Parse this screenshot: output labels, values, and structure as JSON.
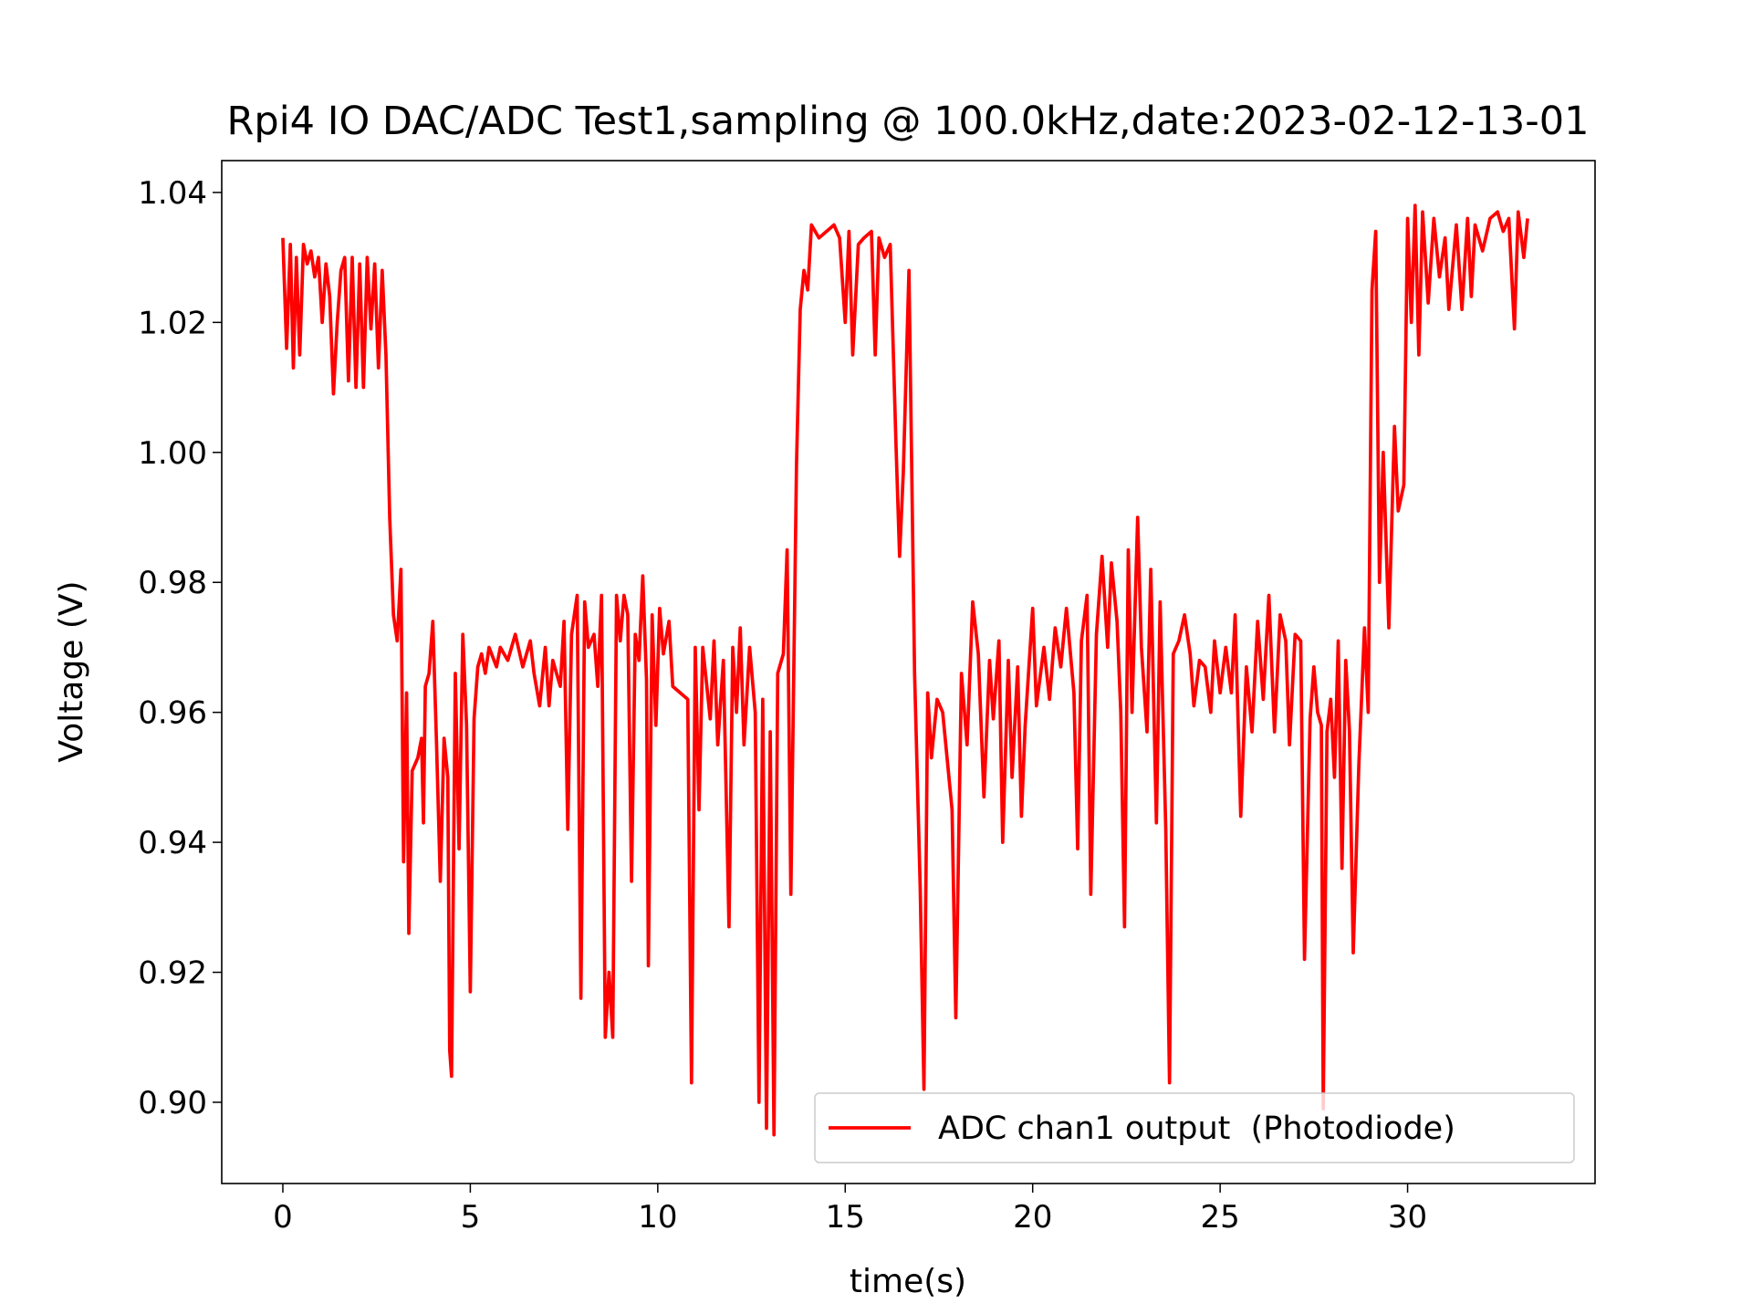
{
  "chart_data": {
    "type": "line",
    "title": "Rpi4 IO DAC/ADC Test1,sampling @ 100.0kHz,date:2023-02-12-13-01",
    "xlabel": "time(s)",
    "ylabel": "Voltage (V)",
    "xlim": [
      -1.63,
      35.0
    ],
    "ylim": [
      0.8875,
      1.0449
    ],
    "xticks": [
      0,
      5,
      10,
      15,
      20,
      25,
      30
    ],
    "yticks": [
      {
        "value": 0.9,
        "label": "0.90"
      },
      0.92,
      0.94,
      0.96,
      0.98,
      {
        "value": 1,
        "label": "1.00"
      },
      1.02,
      1.04
    ],
    "legend_position": "lower right",
    "x": [
      0,
      0.1,
      0.2,
      0.28,
      0.36,
      0.45,
      0.55,
      0.65,
      0.75,
      0.85,
      0.95,
      1.05,
      1.15,
      1.25,
      1.35,
      1.45,
      1.55,
      1.65,
      1.75,
      1.85,
      1.95,
      2.05,
      2.15,
      2.25,
      2.35,
      2.45,
      2.55,
      2.65,
      2.75,
      2.85,
      2.95,
      3.05,
      3.15,
      3.22,
      3.3,
      3.36,
      3.45,
      3.6,
      3.7,
      3.75,
      3.8,
      3.9,
      4.0,
      4.1,
      4.2,
      4.3,
      4.4,
      4.45,
      4.5,
      4.6,
      4.7,
      4.8,
      4.9,
      5.0,
      5.1,
      5.2,
      5.3,
      5.4,
      5.5,
      5.7,
      5.8,
      6.0,
      6.2,
      6.4,
      6.6,
      6.7,
      6.85,
      7.0,
      7.1,
      7.2,
      7.4,
      7.5,
      7.6,
      7.7,
      7.85,
      7.95,
      8.05,
      8.15,
      8.3,
      8.4,
      8.5,
      8.6,
      8.7,
      8.8,
      8.9,
      9.0,
      9.1,
      9.2,
      9.3,
      9.4,
      9.5,
      9.6,
      9.7,
      9.75,
      9.85,
      9.95,
      10.05,
      10.15,
      10.3,
      10.4,
      10.6,
      10.8,
      10.9,
      11.0,
      11.1,
      11.2,
      11.4,
      11.5,
      11.6,
      11.75,
      11.9,
      12.0,
      12.1,
      12.2,
      12.3,
      12.45,
      12.6,
      12.7,
      12.8,
      12.9,
      13.0,
      13.1,
      13.2,
      13.35,
      13.45,
      13.55,
      13.7,
      13.8,
      13.9,
      14.0,
      14.1,
      14.3,
      14.5,
      14.7,
      14.85,
      15.0,
      15.1,
      15.2,
      15.35,
      15.5,
      15.7,
      15.8,
      15.9,
      16.05,
      16.2,
      16.35,
      16.45,
      16.55,
      16.7,
      16.85,
      17.0,
      17.1,
      17.2,
      17.3,
      17.45,
      17.6,
      17.7,
      17.85,
      17.95,
      18.1,
      18.25,
      18.4,
      18.55,
      18.7,
      18.85,
      18.95,
      19.1,
      19.2,
      19.35,
      19.45,
      19.6,
      19.7,
      19.8,
      20.0,
      20.1,
      20.3,
      20.45,
      20.6,
      20.75,
      20.9,
      21.1,
      21.2,
      21.3,
      21.45,
      21.55,
      21.7,
      21.85,
      22.0,
      22.1,
      22.25,
      22.35,
      22.45,
      22.55,
      22.65,
      22.8,
      22.9,
      23.05,
      23.15,
      23.3,
      23.4,
      23.55,
      23.65,
      23.75,
      23.9,
      24.05,
      24.2,
      24.3,
      24.45,
      24.6,
      24.75,
      24.85,
      25.0,
      25.15,
      25.3,
      25.4,
      25.55,
      25.7,
      25.85,
      26.0,
      26.15,
      26.3,
      26.45,
      26.6,
      26.75,
      26.85,
      27.0,
      27.15,
      27.25,
      27.4,
      27.5,
      27.6,
      27.7,
      27.75,
      27.85,
      27.95,
      28.05,
      28.15,
      28.25,
      28.35,
      28.45,
      28.55,
      28.7,
      28.85,
      28.95,
      29.05,
      29.15,
      29.25,
      29.35,
      29.5,
      29.65,
      29.75,
      29.9,
      30.0,
      30.1,
      30.2,
      30.3,
      30.4,
      30.55,
      30.7,
      30.85,
      31.0,
      31.1,
      31.3,
      31.45,
      31.6,
      31.7,
      31.8,
      32.0,
      32.2,
      32.4,
      32.55,
      32.7,
      32.85,
      32.95,
      33.1,
      33.2
    ],
    "series": [
      {
        "name": "ADC chan1 output  (Photodiode)",
        "color": "#ff0000",
        "values": [
          1.033,
          1.016,
          1.032,
          1.013,
          1.03,
          1.015,
          1.032,
          1.029,
          1.031,
          1.027,
          1.03,
          1.02,
          1.029,
          1.024,
          1.009,
          1.02,
          1.028,
          1.03,
          1.011,
          1.03,
          1.01,
          1.029,
          1.01,
          1.03,
          1.019,
          1.029,
          1.013,
          1.028,
          1.015,
          0.99,
          0.975,
          0.971,
          0.982,
          0.937,
          0.963,
          0.926,
          0.951,
          0.953,
          0.956,
          0.943,
          0.964,
          0.966,
          0.974,
          0.955,
          0.934,
          0.956,
          0.95,
          0.908,
          0.904,
          0.966,
          0.939,
          0.972,
          0.958,
          0.917,
          0.959,
          0.967,
          0.969,
          0.966,
          0.97,
          0.967,
          0.97,
          0.968,
          0.972,
          0.967,
          0.971,
          0.966,
          0.961,
          0.97,
          0.961,
          0.968,
          0.964,
          0.974,
          0.942,
          0.972,
          0.978,
          0.916,
          0.977,
          0.97,
          0.972,
          0.964,
          0.978,
          0.91,
          0.92,
          0.91,
          0.978,
          0.971,
          0.978,
          0.975,
          0.934,
          0.972,
          0.968,
          0.981,
          0.965,
          0.921,
          0.975,
          0.958,
          0.976,
          0.969,
          0.974,
          0.964,
          0.963,
          0.962,
          0.903,
          0.97,
          0.945,
          0.97,
          0.959,
          0.971,
          0.955,
          0.968,
          0.927,
          0.97,
          0.96,
          0.973,
          0.955,
          0.97,
          0.96,
          0.9,
          0.962,
          0.896,
          0.957,
          0.895,
          0.966,
          0.969,
          0.985,
          0.932,
          0.998,
          1.022,
          1.028,
          1.025,
          1.035,
          1.033,
          1.034,
          1.035,
          1.033,
          1.02,
          1.034,
          1.015,
          1.032,
          1.033,
          1.034,
          1.015,
          1.033,
          1.03,
          1.032,
          1.002,
          0.984,
          0.997,
          1.028,
          0.966,
          0.933,
          0.902,
          0.963,
          0.953,
          0.962,
          0.96,
          0.954,
          0.945,
          0.913,
          0.966,
          0.955,
          0.977,
          0.969,
          0.947,
          0.968,
          0.959,
          0.971,
          0.94,
          0.968,
          0.95,
          0.967,
          0.944,
          0.958,
          0.976,
          0.961,
          0.97,
          0.962,
          0.973,
          0.967,
          0.976,
          0.963,
          0.939,
          0.971,
          0.978,
          0.932,
          0.972,
          0.984,
          0.97,
          0.983,
          0.974,
          0.96,
          0.927,
          0.985,
          0.96,
          0.99,
          0.97,
          0.957,
          0.982,
          0.943,
          0.977,
          0.942,
          0.903,
          0.969,
          0.971,
          0.975,
          0.969,
          0.961,
          0.968,
          0.967,
          0.96,
          0.971,
          0.963,
          0.97,
          0.963,
          0.975,
          0.944,
          0.967,
          0.957,
          0.974,
          0.962,
          0.978,
          0.957,
          0.975,
          0.971,
          0.955,
          0.972,
          0.971,
          0.922,
          0.959,
          0.967,
          0.96,
          0.958,
          0.899,
          0.957,
          0.962,
          0.95,
          0.971,
          0.936,
          0.968,
          0.957,
          0.923,
          0.952,
          0.973,
          0.96,
          1.025,
          1.034,
          0.98,
          1.0,
          0.973,
          1.004,
          0.991,
          0.995,
          1.036,
          1.02,
          1.038,
          1.015,
          1.037,
          1.023,
          1.036,
          1.027,
          1.033,
          1.022,
          1.035,
          1.022,
          1.036,
          1.024,
          1.035,
          1.031,
          1.036,
          1.037,
          1.034,
          1.036,
          1.019,
          1.037,
          1.03,
          1.036
        ]
      }
    ]
  }
}
